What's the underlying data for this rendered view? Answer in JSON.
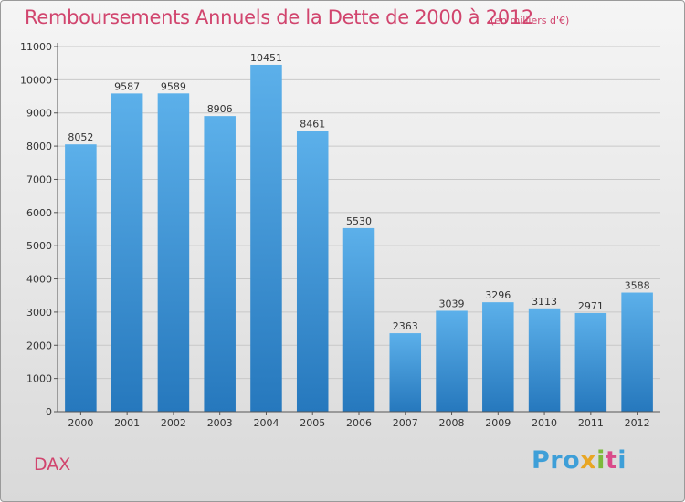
{
  "title": "Remboursements Annuels de la Dette de 2000 à 2012",
  "subtitle": "(en milliers d'€)",
  "city": "DAX",
  "logo": [
    "Pro",
    "x",
    "i",
    "t",
    "i"
  ],
  "colors": {
    "title": "#d1456e",
    "bar_top": "#5cb0ea",
    "bar_bottom": "#2678bd"
  },
  "chart_data": {
    "type": "bar",
    "title": "Remboursements Annuels de la Dette de 2000 à 2012",
    "subtitle": "(en milliers d'€)",
    "categories": [
      "2000",
      "2001",
      "2002",
      "2003",
      "2004",
      "2005",
      "2006",
      "2007",
      "2008",
      "2009",
      "2010",
      "2011",
      "2012"
    ],
    "values": [
      8052,
      9587,
      9589,
      8906,
      10451,
      8461,
      5530,
      2363,
      3039,
      3296,
      3113,
      2971,
      3588
    ],
    "yticks": [
      0,
      1000,
      2000,
      3000,
      4000,
      5000,
      6000,
      7000,
      8000,
      9000,
      10000,
      11000
    ],
    "ylim": [
      0,
      11000
    ],
    "grid": true,
    "xlabel": "",
    "ylabel": ""
  }
}
